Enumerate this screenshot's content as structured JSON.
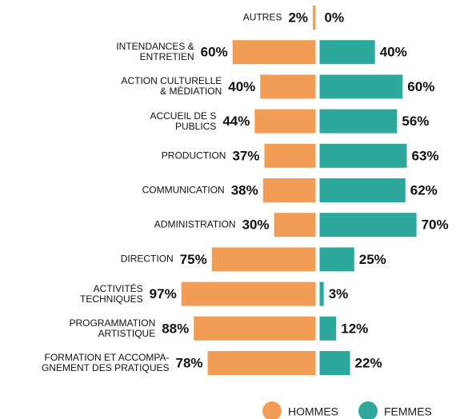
{
  "chart_data": {
    "type": "bar",
    "orientation": "diverging",
    "categories": [
      "AUTRES",
      "INTENDANCES &\nENTRETIEN",
      "ACTION CULTURELLE\n& MÉDIATION",
      "ACCUEIL DE S\nPUBLICS",
      "PRODUCTION",
      "COMMUNICATION",
      "ADMINISTRATION",
      "DIRECTION",
      "ACTIVITÉS\nTECHNIQUES",
      "PROGRAMMATION\nARTISTIQUE",
      "FORMATION ET ACCOMPA-\nGNEMENT DES PRATIQUES"
    ],
    "series": [
      {
        "name": "HOMMES",
        "color": "#f29d55",
        "values": [
          2,
          60,
          40,
          44,
          37,
          38,
          30,
          75,
          97,
          88,
          78
        ],
        "value_labels": [
          "2%",
          "60%",
          "40%",
          "44%",
          "37%",
          "38%",
          "30%",
          "75%",
          "97%",
          "88%",
          "78%"
        ]
      },
      {
        "name": "FEMMES",
        "color": "#2ea79c",
        "values": [
          0,
          40,
          60,
          56,
          63,
          62,
          70,
          25,
          3,
          12,
          22
        ],
        "value_labels": [
          "0%",
          "40%",
          "60%",
          "56%",
          "63%",
          "62%",
          "70%",
          "25%",
          "3%",
          "12%",
          "22%"
        ]
      }
    ],
    "legend": "bottom"
  }
}
